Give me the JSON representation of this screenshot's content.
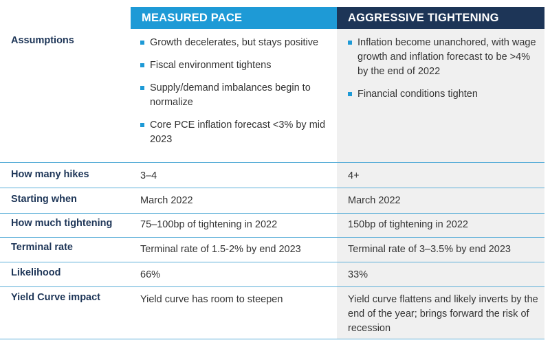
{
  "header": {
    "col_measured": "MEASURED PACE",
    "col_aggressive": "AGGRESSIVE TIGHTENING"
  },
  "rows": {
    "assumptions": {
      "label": "Assumptions",
      "measured": [
        "Growth decelerates, but stays positive",
        "Fiscal environment tightens",
        "Supply/demand imbalances begin to normalize",
        "Core PCE inflation forecast <3% by mid 2023"
      ],
      "aggressive": [
        "Inflation become unanchored, with wage growth and inflation forecast to be >4% by the end of 2022",
        "Financial conditions tighten"
      ]
    },
    "hikes": {
      "label": "How many hikes",
      "measured": "3–4",
      "aggressive": "4+"
    },
    "starting": {
      "label": "Starting when",
      "measured": "March 2022",
      "aggressive": "March 2022"
    },
    "tightening": {
      "label": "How much tightening",
      "measured": "75–100bp of tightening in 2022",
      "aggressive": "150bp of tightening in 2022"
    },
    "terminal": {
      "label": "Terminal rate",
      "measured": "Terminal rate of 1.5-2% by end 2023",
      "aggressive": "Terminal rate of 3–3.5% by end 2023"
    },
    "likelihood": {
      "label": "Likelihood",
      "measured": "66%",
      "aggressive": "33%"
    },
    "yield": {
      "label": "Yield Curve impact",
      "measured": "Yield curve has room to steepen",
      "aggressive": "Yield curve flattens and likely inverts by the end of the year; brings forward the risk of recession"
    }
  },
  "colors": {
    "measured_header": "#1e9ad6",
    "aggressive_header": "#1d3557",
    "aggressive_bg": "#f0f0f0",
    "row_label": "#1d3557",
    "rule": "#5aaed8",
    "bullet": "#1e9ad6"
  }
}
